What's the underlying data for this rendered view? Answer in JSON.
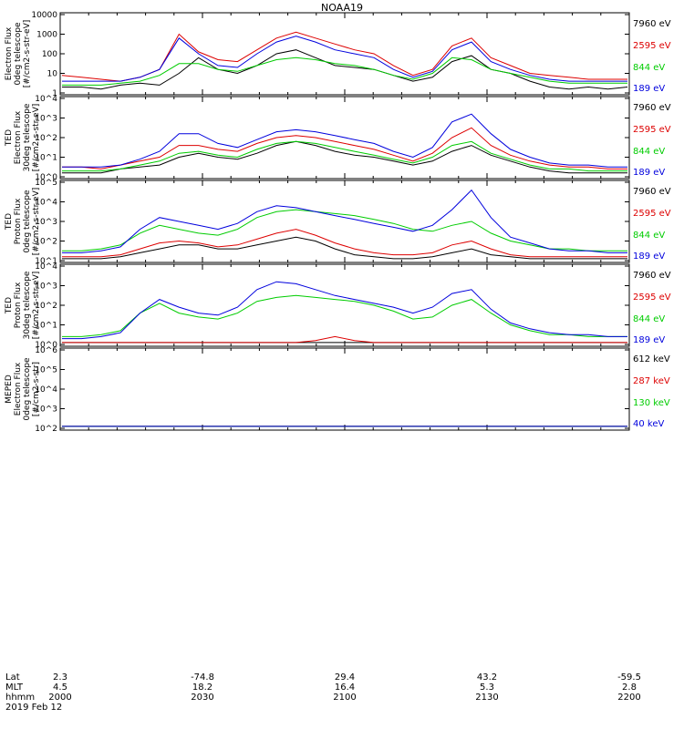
{
  "title": "NOAA19",
  "footer": {
    "row_labels": [
      "Lat",
      "MLT",
      "hhmm"
    ],
    "columns": [
      {
        "lat": "2.3",
        "mlt": "4.5",
        "hhmm": "2000"
      },
      {
        "lat": "-74.8",
        "mlt": "18.2",
        "hhmm": "2030"
      },
      {
        "lat": "29.4",
        "mlt": "16.4",
        "hhmm": "2100"
      },
      {
        "lat": "43.2",
        "mlt": "5.3",
        "hhmm": "2130"
      },
      {
        "lat": "-59.5",
        "mlt": "2.8",
        "hhmm": "2200"
      }
    ],
    "date": "2019 Feb 12"
  },
  "chart_data": [
    {
      "type": "line",
      "x_range": [
        "2000",
        "2200"
      ],
      "ylabel": [
        "Electron Flux",
        "0deg telescope",
        "[#/cm2-s-str-eV]"
      ],
      "y_ticks": [
        "10000",
        "1000",
        "100",
        "10",
        "1"
      ],
      "legend": [
        {
          "label": "7960 eV",
          "color": "#000000"
        },
        {
          "label": "2595 eV",
          "color": "#dd0000"
        },
        {
          "label": "844 eV",
          "color": "#00cc00"
        },
        {
          "label": "189 eV",
          "color": "#0000dd"
        }
      ],
      "series": [
        {
          "color": "#000000",
          "values": [
            0.3,
            0.3,
            0.2,
            0.4,
            0.5,
            0.4,
            1,
            1.8,
            1.2,
            1,
            1.4,
            2,
            2.2,
            1.8,
            1.4,
            1.3,
            1.2,
            0.9,
            0.6,
            0.8,
            1.6,
            1.9,
            1.2,
            1,
            0.6,
            0.3,
            0.2,
            0.3,
            0.2,
            0.3
          ]
        },
        {
          "color": "#dd0000",
          "values": [
            0.9,
            0.8,
            0.7,
            0.6,
            0.8,
            1.2,
            3,
            2.1,
            1.7,
            1.6,
            2.2,
            2.8,
            3.1,
            2.8,
            2.5,
            2.2,
            2,
            1.4,
            0.9,
            1.2,
            2.4,
            2.8,
            1.8,
            1.4,
            1,
            0.9,
            0.8,
            0.7,
            0.7,
            0.7
          ]
        },
        {
          "color": "#00cc00",
          "values": [
            0.4,
            0.4,
            0.4,
            0.5,
            0.6,
            0.9,
            1.5,
            1.5,
            1.2,
            1.1,
            1.4,
            1.7,
            1.8,
            1.7,
            1.5,
            1.4,
            1.2,
            0.9,
            0.7,
            1,
            1.8,
            1.7,
            1.2,
            1,
            0.8,
            0.6,
            0.5,
            0.5,
            0.5,
            0.5
          ]
        },
        {
          "color": "#0000dd",
          "values": [
            0.6,
            0.6,
            0.6,
            0.6,
            0.8,
            1.2,
            2.8,
            2,
            1.4,
            1.3,
            2,
            2.6,
            2.9,
            2.6,
            2.2,
            2,
            1.8,
            1.2,
            0.8,
            1.1,
            2.2,
            2.6,
            1.6,
            1.2,
            0.9,
            0.7,
            0.6,
            0.6,
            0.6,
            0.6
          ]
        }
      ]
    },
    {
      "type": "line",
      "x_range": [
        "2000",
        "2200"
      ],
      "ylabel": [
        "TED",
        "Electron Flux",
        "30deg telescope",
        "[#/cm2-s-str-eV]"
      ],
      "y_ticks": [
        "10^4",
        "10^3",
        "10^2",
        "10^1",
        "10^0"
      ],
      "legend": [
        {
          "label": "7960 eV",
          "color": "#000000"
        },
        {
          "label": "2595 eV",
          "color": "#dd0000"
        },
        {
          "label": "844 eV",
          "color": "#00cc00"
        },
        {
          "label": "189 eV",
          "color": "#0000dd"
        }
      ],
      "series": [
        {
          "color": "#000000",
          "values": [
            0.2,
            0.2,
            0.2,
            0.4,
            0.5,
            0.6,
            1,
            1.2,
            1,
            0.9,
            1.2,
            1.6,
            1.8,
            1.6,
            1.3,
            1.1,
            1,
            0.8,
            0.6,
            0.8,
            1.3,
            1.6,
            1.1,
            0.8,
            0.5,
            0.3,
            0.2,
            0.2,
            0.2,
            0.2
          ]
        },
        {
          "color": "#dd0000",
          "values": [
            0.5,
            0.5,
            0.4,
            0.6,
            0.8,
            1,
            1.6,
            1.6,
            1.4,
            1.3,
            1.7,
            2,
            2.1,
            2,
            1.8,
            1.6,
            1.4,
            1.1,
            0.8,
            1.2,
            2,
            2.5,
            1.6,
            1.1,
            0.8,
            0.6,
            0.5,
            0.5,
            0.4,
            0.4
          ]
        },
        {
          "color": "#00cc00",
          "values": [
            0.3,
            0.3,
            0.3,
            0.4,
            0.6,
            0.8,
            1.2,
            1.3,
            1.1,
            1,
            1.4,
            1.7,
            1.8,
            1.7,
            1.5,
            1.3,
            1.1,
            0.9,
            0.7,
            1,
            1.6,
            1.8,
            1.2,
            0.9,
            0.6,
            0.4,
            0.4,
            0.3,
            0.3,
            0.3
          ]
        },
        {
          "color": "#0000dd",
          "values": [
            0.5,
            0.5,
            0.5,
            0.6,
            0.9,
            1.3,
            2.2,
            2.2,
            1.7,
            1.5,
            1.9,
            2.3,
            2.4,
            2.3,
            2.1,
            1.9,
            1.7,
            1.3,
            1,
            1.5,
            2.8,
            3.2,
            2.2,
            1.4,
            1,
            0.7,
            0.6,
            0.6,
            0.5,
            0.5
          ]
        }
      ]
    },
    {
      "type": "line",
      "x_range": [
        "2000",
        "2200"
      ],
      "ylabel": [
        "TED",
        "Proton Flux",
        "0deg telescope",
        "[#/cm2-s-str-eV]"
      ],
      "y_ticks": [
        "10^5",
        "10^4",
        "10^3",
        "10^2",
        "10^1"
      ],
      "legend": [
        {
          "label": "7960 eV",
          "color": "#000000"
        },
        {
          "label": "2595 eV",
          "color": "#dd0000"
        },
        {
          "label": "844 eV",
          "color": "#00cc00"
        },
        {
          "label": "189 eV",
          "color": "#0000dd"
        }
      ],
      "series": [
        {
          "color": "#000000",
          "values": [
            0.1,
            0.1,
            0.1,
            0.2,
            0.4,
            0.6,
            0.8,
            0.8,
            0.6,
            0.6,
            0.8,
            1,
            1.2,
            1,
            0.6,
            0.3,
            0.2,
            0.1,
            0.1,
            0.2,
            0.4,
            0.6,
            0.3,
            0.2,
            0.1,
            0.1,
            0.1,
            0.1,
            0.1,
            0.1
          ]
        },
        {
          "color": "#dd0000",
          "values": [
            0.2,
            0.2,
            0.2,
            0.3,
            0.6,
            0.9,
            1,
            0.9,
            0.7,
            0.8,
            1.1,
            1.4,
            1.6,
            1.3,
            0.9,
            0.6,
            0.4,
            0.3,
            0.3,
            0.4,
            0.8,
            1,
            0.6,
            0.3,
            0.2,
            0.2,
            0.2,
            0.2,
            0.2,
            0.2
          ]
        },
        {
          "color": "#00cc00",
          "values": [
            0.5,
            0.5,
            0.6,
            0.8,
            1.4,
            1.8,
            1.6,
            1.4,
            1.3,
            1.6,
            2.2,
            2.5,
            2.6,
            2.5,
            2.4,
            2.3,
            2.1,
            1.9,
            1.6,
            1.5,
            1.8,
            2,
            1.4,
            1,
            0.8,
            0.6,
            0.6,
            0.5,
            0.5,
            0.5
          ]
        },
        {
          "color": "#0000dd",
          "values": [
            0.4,
            0.4,
            0.5,
            0.7,
            1.6,
            2.2,
            2,
            1.8,
            1.6,
            1.9,
            2.5,
            2.8,
            2.7,
            2.5,
            2.3,
            2.1,
            1.9,
            1.7,
            1.5,
            1.8,
            2.6,
            3.6,
            2.2,
            1.2,
            0.9,
            0.6,
            0.5,
            0.5,
            0.4,
            0.4
          ]
        }
      ]
    },
    {
      "type": "line",
      "x_range": [
        "2000",
        "2200"
      ],
      "ylabel": [
        "TED",
        "Proton Flux",
        "30deg telescope",
        "[#/cm2-s-str-eV]"
      ],
      "y_ticks": [
        "10^4",
        "10^3",
        "10^2",
        "10^1",
        "10^0"
      ],
      "legend": [
        {
          "label": "7960 eV",
          "color": "#000000"
        },
        {
          "label": "2595 eV",
          "color": "#dd0000"
        },
        {
          "label": "844 eV",
          "color": "#00cc00"
        },
        {
          "label": "189 eV",
          "color": "#0000dd"
        }
      ],
      "series": [
        {
          "color": "#000000",
          "values": [
            0.1,
            0.1,
            0.1,
            0.1,
            0.1,
            0.1,
            0.1,
            0.1,
            0.1,
            0.1,
            0.1,
            0.1,
            0.1,
            0.1,
            0.1,
            0.1,
            0.1,
            0.1,
            0.1,
            0.1,
            0.1,
            0.1,
            0.1,
            0.1,
            0.1,
            0.1,
            0.1,
            0.1,
            0.1,
            0.1
          ]
        },
        {
          "color": "#dd0000",
          "values": [
            0.1,
            0.1,
            0.1,
            0.1,
            0.1,
            0.1,
            0.1,
            0.1,
            0.1,
            0.1,
            0.1,
            0.1,
            0.1,
            0.2,
            0.4,
            0.2,
            0.1,
            0.1,
            0.1,
            0.1,
            0.1,
            0.1,
            0.1,
            0.1,
            0.1,
            0.1,
            0.1,
            0.1,
            0.1,
            0.1
          ]
        },
        {
          "color": "#00cc00",
          "values": [
            0.4,
            0.4,
            0.5,
            0.7,
            1.6,
            2.1,
            1.6,
            1.4,
            1.3,
            1.6,
            2.2,
            2.4,
            2.5,
            2.4,
            2.3,
            2.2,
            2,
            1.7,
            1.3,
            1.4,
            2,
            2.3,
            1.6,
            1,
            0.7,
            0.5,
            0.5,
            0.4,
            0.4,
            0.4
          ]
        },
        {
          "color": "#0000dd",
          "values": [
            0.3,
            0.3,
            0.4,
            0.6,
            1.6,
            2.3,
            1.9,
            1.6,
            1.5,
            1.9,
            2.8,
            3.2,
            3.1,
            2.8,
            2.5,
            2.3,
            2.1,
            1.9,
            1.6,
            1.9,
            2.6,
            2.8,
            1.8,
            1.1,
            0.8,
            0.6,
            0.5,
            0.5,
            0.4,
            0.4
          ]
        }
      ]
    },
    {
      "type": "line",
      "x_range": [
        "2000",
        "2200"
      ],
      "ylabel": [
        "MEPED",
        "Electron Flux",
        "0deg telescope",
        "[#/cm2-s-str]"
      ],
      "y_ticks": [
        "10^6",
        "10^5",
        "10^4",
        "10^3",
        "10^2"
      ],
      "legend": [
        {
          "label": "612 keV",
          "color": "#000000"
        },
        {
          "label": "287 keV",
          "color": "#dd0000"
        },
        {
          "label": "130 keV",
          "color": "#00cc00"
        },
        {
          "label": "40 keV",
          "color": "#0000dd"
        }
      ],
      "series": [
        {
          "color": "#000000",
          "values": [
            0.1,
            0.1,
            0.1,
            0.1,
            0.1,
            0.1,
            0.1,
            0.1,
            0.1,
            0.1,
            0.1,
            0.1,
            0.1,
            0.1,
            0.1,
            0.1,
            0.1,
            0.1,
            0.1,
            0.1,
            0.1,
            0.1,
            0.1,
            0.1,
            0.1,
            0.1,
            0.1,
            0.1,
            0.1,
            0.1
          ]
        },
        {
          "color": "#dd0000",
          "values": [
            0.1,
            0.1,
            0.1,
            0.1,
            0.1,
            0.1,
            0.1,
            0.1,
            0.1,
            0.1,
            0.1,
            0.1,
            0.1,
            0.1,
            0.1,
            0.1,
            0.1,
            0.1,
            0.1,
            0.1,
            0.1,
            0.1,
            0.1,
            0.1,
            0.1,
            0.1,
            0.1,
            0.1,
            0.1,
            0.1
          ]
        },
        {
          "color": "#00cc00",
          "values": [
            0.1,
            0.1,
            0.1,
            0.1,
            0.1,
            0.1,
            0.1,
            0.1,
            0.1,
            0.1,
            0.1,
            0.1,
            0.1,
            0.1,
            0.1,
            0.1,
            0.1,
            0.1,
            0.1,
            0.1,
            0.1,
            0.1,
            0.1,
            0.1,
            0.1,
            0.1,
            0.1,
            0.1,
            0.1,
            0.1
          ]
        },
        {
          "color": "#0000dd",
          "values": [
            0.1,
            0.1,
            0.1,
            0.1,
            0.1,
            0.1,
            0.1,
            0.1,
            0.1,
            0.1,
            0.1,
            0.1,
            0.1,
            0.1,
            0.1,
            0.1,
            0.1,
            0.1,
            0.1,
            0.1,
            0.1,
            0.1,
            0.1,
            0.1,
            0.1,
            0.1,
            0.1,
            0.1,
            0.1,
            0.1
          ]
        }
      ]
    }
  ]
}
